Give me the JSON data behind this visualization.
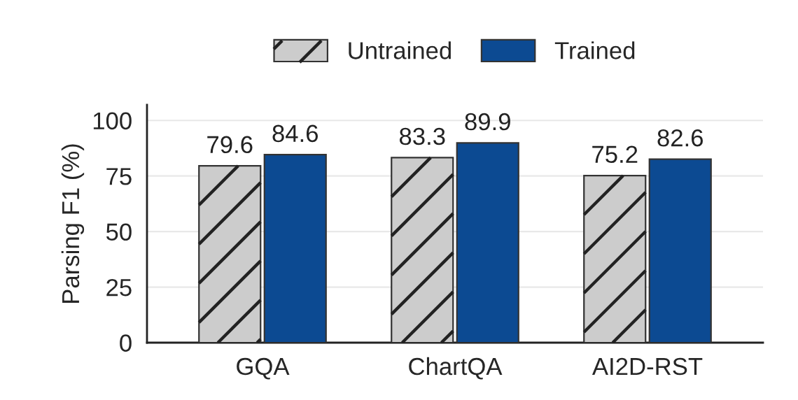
{
  "chart_data": {
    "type": "bar",
    "ylabel": "Parsing F1 (%)",
    "categories": [
      "GQA",
      "ChartQA",
      "AI2D-RST"
    ],
    "series": [
      {
        "name": "Untrained",
        "color": "#cccccc",
        "values": [
          79.6,
          83.3,
          75.2
        ]
      },
      {
        "name": "Trained",
        "color": "#0c4a92",
        "values": [
          84.6,
          89.9,
          82.6
        ]
      }
    ],
    "ylim": [
      0,
      107
    ],
    "yticks": [
      0,
      25,
      50,
      75,
      100
    ],
    "grid": "y",
    "legend": "top",
    "data_labels": true
  }
}
